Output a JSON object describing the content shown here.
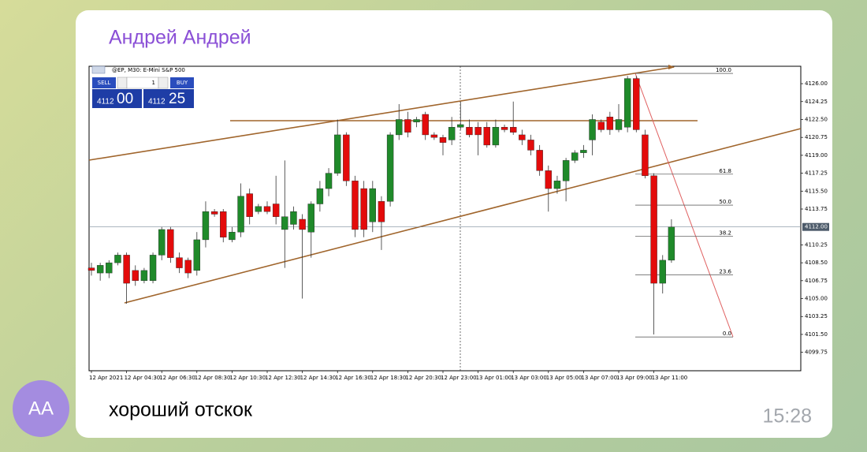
{
  "message": {
    "sender": "Андрей Андрей",
    "avatar_initials": "АА",
    "text": "хороший отскок",
    "time": "15:28"
  },
  "chart_data": {
    "type": "candlestick",
    "title": "@EP, M30: E-Mini S&P 500",
    "categories": [
      "12 Apr 2021",
      null,
      null,
      null,
      "12 Apr 04:30",
      null,
      null,
      null,
      "12 Apr 06:30",
      null,
      null,
      null,
      "12 Apr 08:30",
      null,
      null,
      null,
      "12 Apr 10:30",
      null,
      null,
      null,
      "12 Apr 12:30",
      null,
      null,
      null,
      "12 Apr 14:30",
      null,
      null,
      null,
      "12 Apr 16:30",
      null,
      null,
      null,
      "12 Apr 18:30",
      null,
      null,
      null,
      "12 Apr 20:30",
      null,
      null,
      null,
      "12 Apr 23:00",
      null,
      null,
      null,
      "13 Apr 01:00",
      null,
      null,
      null,
      "13 Apr 03:00",
      null,
      null,
      null,
      "13 Apr 05:00",
      null,
      null,
      null,
      "13 Apr 07:00",
      null,
      null,
      null,
      "13 Apr 09:00",
      null,
      null,
      null,
      "13 Apr 11:00",
      null,
      null
    ],
    "open": [
      4108.0,
      4107.5,
      4107.5,
      4108.5,
      4109.25,
      4107.75,
      4106.75,
      4106.75,
      4109.25,
      4111.75,
      4109.0,
      4108.75,
      4107.75,
      4110.75,
      4113.5,
      4113.5,
      4110.75,
      4111.5,
      4115.25,
      4113.5,
      4114.0,
      4114.25,
      4111.75,
      4112.25,
      4112.75,
      4111.5,
      4114.25,
      4115.75,
      4117.25,
      4121.0,
      4116.5,
      4115.75,
      4112.5,
      4114.5,
      4114.5,
      4121.0,
      4122.5,
      4122.25,
      4123.0,
      4121.0,
      4120.75,
      4120.5,
      4121.75,
      4121.75,
      4121.75,
      4121.75,
      4120.0,
      4121.75,
      4121.75,
      4121.0,
      4120.5,
      4119.5,
      4117.5,
      4115.75,
      4116.5,
      4118.5,
      4119.25,
      4120.5,
      4122.25,
      4122.75,
      4121.5,
      4121.75,
      4126.5,
      4121.0,
      4117.0,
      4106.5,
      4108.75
    ],
    "high": [
      4108.5,
      4108.5,
      4108.75,
      4109.5,
      4109.5,
      4108.25,
      4108.0,
      4109.5,
      4112.0,
      4112.0,
      4109.5,
      4109.0,
      4111.5,
      4114.5,
      4113.75,
      4113.75,
      4112.0,
      4116.25,
      4115.75,
      4114.25,
      4114.5,
      4117.0,
      4118.5,
      4114.0,
      4113.25,
      4114.5,
      4116.5,
      4117.75,
      4122.5,
      4121.25,
      4117.0,
      4116.5,
      4116.5,
      4115.0,
      4121.25,
      4124.0,
      4123.25,
      4122.75,
      4123.25,
      4121.25,
      4121.0,
      4122.75,
      4124.25,
      4122.5,
      4122.25,
      4122.25,
      4122.5,
      4122.0,
      4124.25,
      4121.5,
      4121.0,
      4120.0,
      4118.0,
      4117.0,
      4118.75,
      4119.5,
      4120.0,
      4123.0,
      4122.5,
      4123.25,
      4124.0,
      4126.75,
      4126.75,
      4121.5,
      4117.25,
      4109.25,
      4112.75
    ],
    "low": [
      4107.25,
      4106.75,
      4107.0,
      4108.25,
      4104.5,
      4106.25,
      4106.5,
      4106.5,
      4108.75,
      4108.5,
      4107.5,
      4107.0,
      4107.25,
      4110.0,
      4113.0,
      4110.5,
      4110.5,
      4111.0,
      4112.25,
      4113.25,
      4113.25,
      4112.25,
      4108.0,
      4111.75,
      4105.0,
      4109.0,
      4113.5,
      4115.0,
      4117.0,
      4116.0,
      4111.0,
      4111.0,
      4111.5,
      4109.75,
      4114.0,
      4120.5,
      4120.75,
      4121.75,
      4120.5,
      4120.5,
      4119.0,
      4120.0,
      4121.5,
      4120.75,
      4119.0,
      4119.75,
      4119.75,
      4121.25,
      4121.0,
      4120.0,
      4119.0,
      4117.0,
      4113.5,
      4115.25,
      4114.5,
      4118.25,
      4118.75,
      4119.0,
      4121.25,
      4121.0,
      4121.25,
      4121.25,
      4121.25,
      4116.75,
      4101.5,
      4105.5,
      4108.5
    ],
    "close": [
      4107.75,
      4108.25,
      4108.5,
      4109.25,
      4106.5,
      4106.75,
      4107.75,
      4109.25,
      4111.75,
      4109.0,
      4108.0,
      4107.5,
      4110.75,
      4113.5,
      4113.25,
      4111.0,
      4111.5,
      4115.0,
      4113.0,
      4114.0,
      4113.5,
      4113.0,
      4113.0,
      4113.5,
      4111.75,
      4114.25,
      4115.75,
      4117.25,
      4121.0,
      4116.5,
      4111.75,
      4111.75,
      4115.75,
      4112.5,
      4121.0,
      4122.5,
      4121.25,
      4122.5,
      4121.0,
      4120.75,
      4120.25,
      4121.75,
      4122.0,
      4121.0,
      4121.0,
      4120.0,
      4121.75,
      4121.5,
      4121.25,
      4120.5,
      4119.5,
      4117.5,
      4115.75,
      4116.5,
      4118.5,
      4119.25,
      4119.5,
      4122.5,
      4121.5,
      4121.5,
      4122.5,
      4126.5,
      4121.5,
      4117.0,
      4106.5,
      4108.75,
      4112.0
    ],
    "up_color": "#1f8a2a",
    "down_color": "#e30b0b",
    "ylim": [
      4097.95,
      4127.7
    ],
    "yticks": [
      {
        "value": 4126,
        "label": "4126.00"
      },
      {
        "value": 4124.25,
        "label": "4124.25"
      },
      {
        "value": 4122.5,
        "label": "4122.50"
      },
      {
        "value": 4120.75,
        "label": "4120.75"
      },
      {
        "value": 4119,
        "label": "4119.00"
      },
      {
        "value": 4117.25,
        "label": "4117.25"
      },
      {
        "value": 4115.5,
        "label": "4115.50"
      },
      {
        "value": 4113.75,
        "label": "4113.75"
      },
      {
        "value": 4110.25,
        "label": "4110.25"
      },
      {
        "value": 4108.5,
        "label": "4108.50"
      },
      {
        "value": 4106.75,
        "label": "4106.75"
      },
      {
        "value": 4105,
        "label": "4105.00"
      },
      {
        "value": 4103.25,
        "label": "4103.25"
      },
      {
        "value": 4101.5,
        "label": "4101.50"
      },
      {
        "value": 4099.75,
        "label": "4099.75"
      }
    ],
    "current_price": {
      "value": 4112,
      "label": "4112.00"
    },
    "fib_levels": [
      {
        "level": "100.0",
        "price": 4127.0
      },
      {
        "level": "61.8",
        "price": 4117.16
      },
      {
        "level": "50.0",
        "price": 4114.13
      },
      {
        "level": "38.2",
        "price": 4111.09
      },
      {
        "level": "23.6",
        "price": 4107.33
      },
      {
        "level": "0.0",
        "price": 4101.25
      }
    ],
    "trade_panel": {
      "sell": "SELL",
      "buy": "BUY",
      "lots": 1,
      "bid_big": "4112",
      "bid_small": "00",
      "ask_big": "4112",
      "ask_small": "25"
    }
  }
}
